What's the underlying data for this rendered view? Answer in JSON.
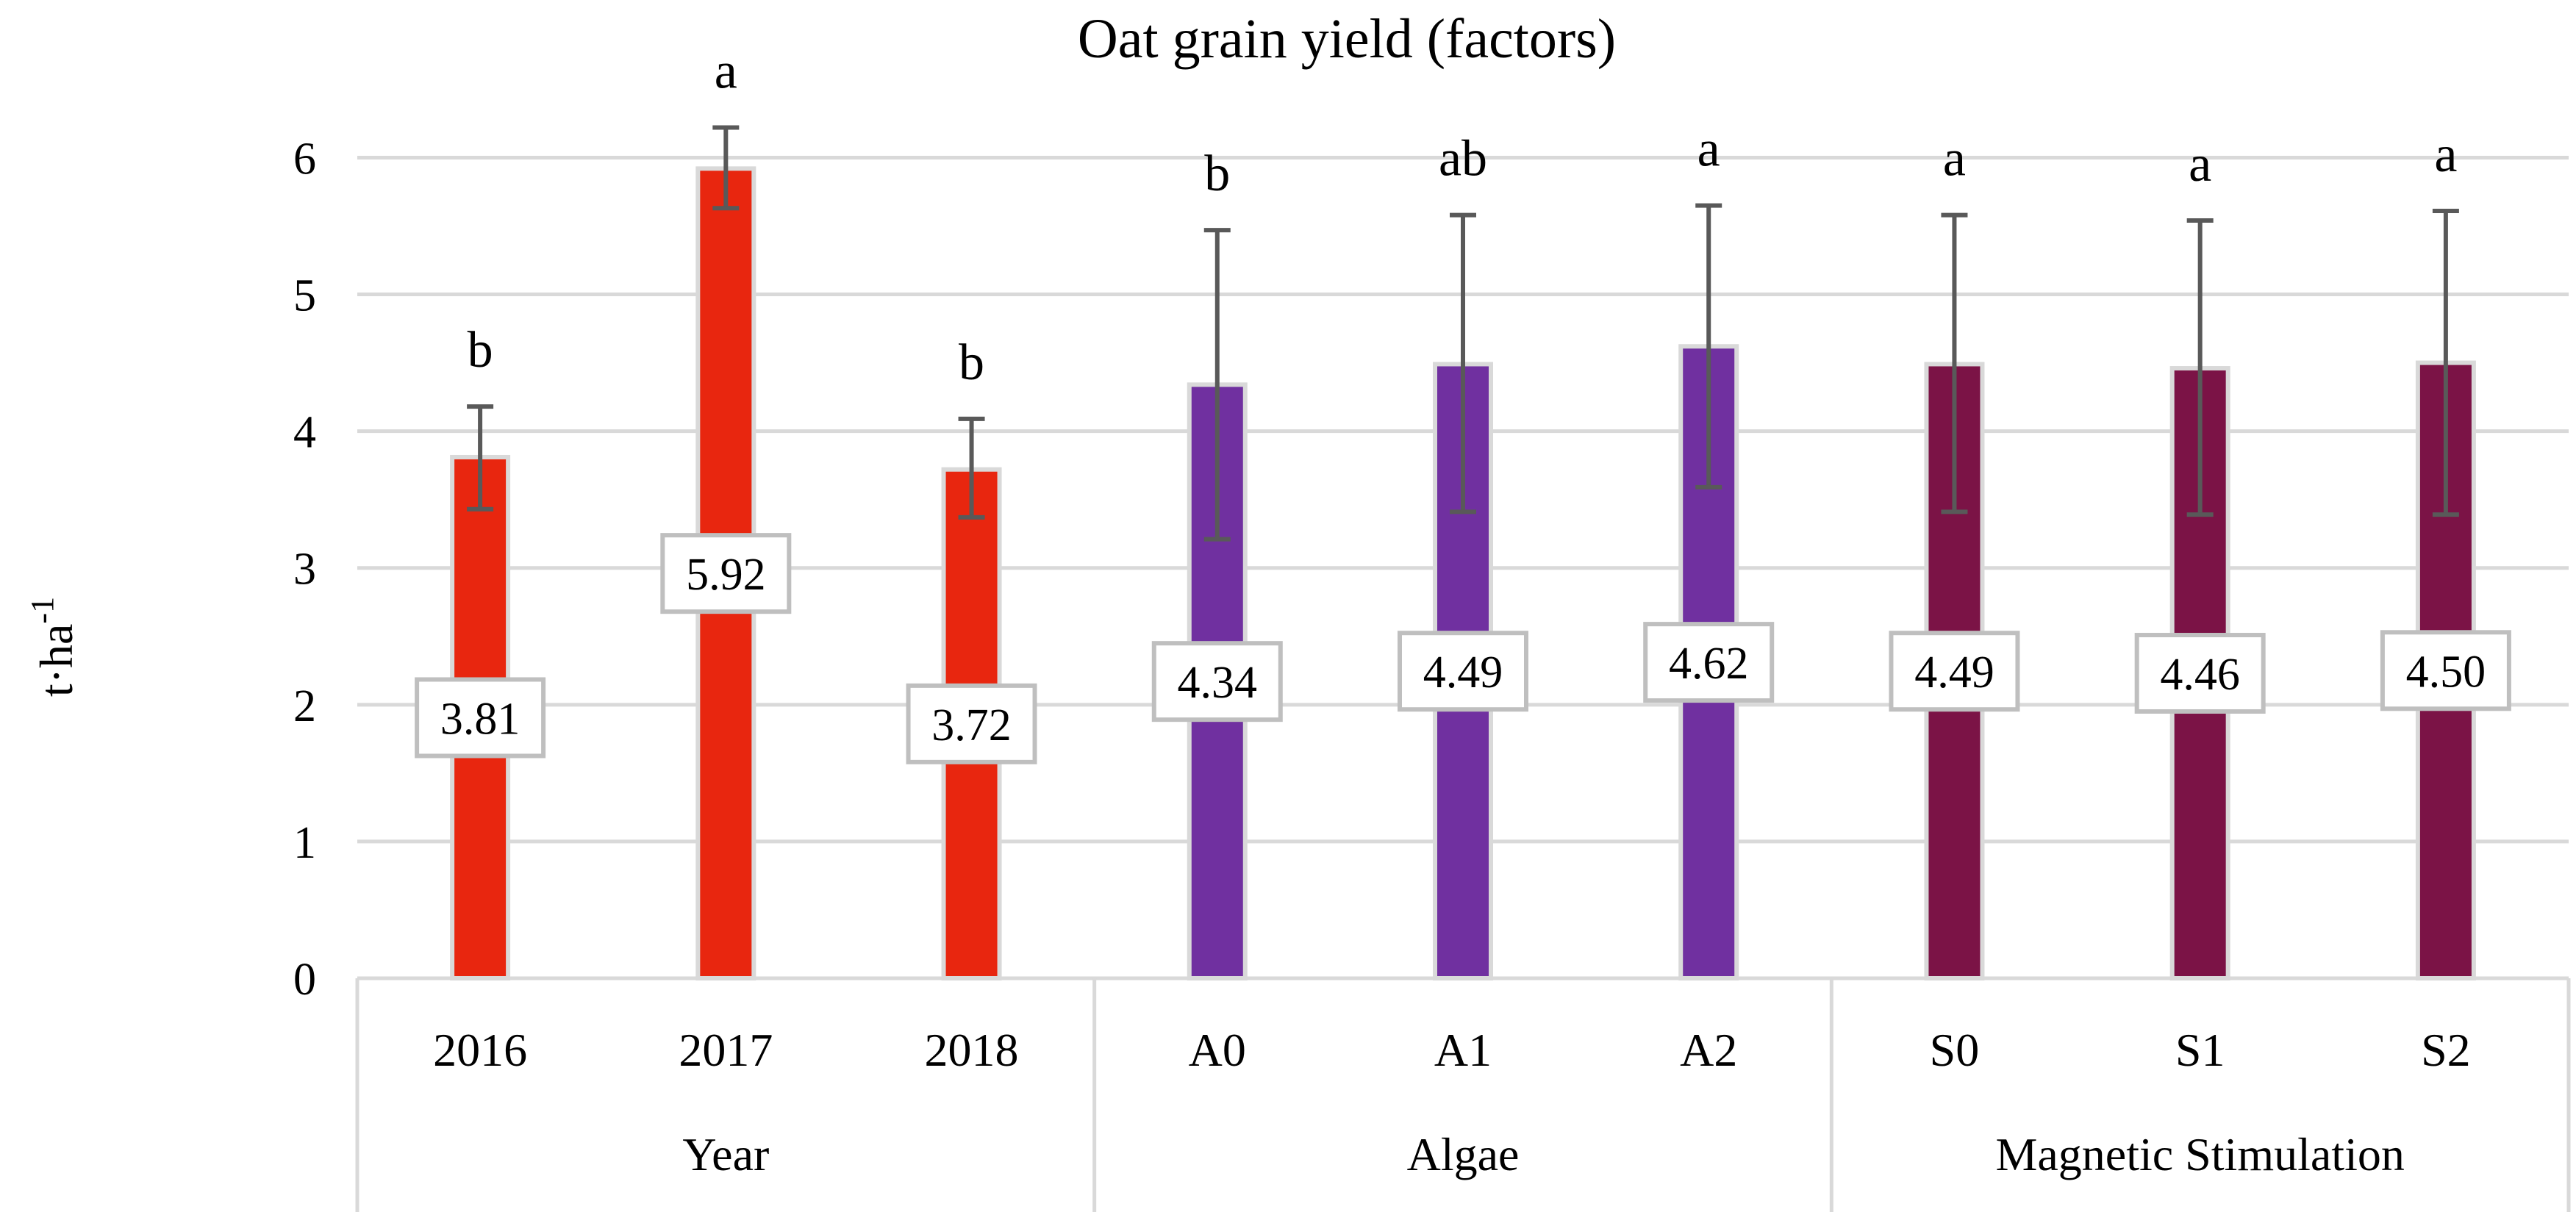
{
  "colors": {
    "year": "#e8260f",
    "algae": "#7030a0",
    "magnetic": "#7b1346",
    "gridline": "#d9d9d9",
    "errorbar": "#595959",
    "label_box_border": "#bfbfbf"
  },
  "chart_data": {
    "type": "bar",
    "title": "Oat grain yield (factors)",
    "ylabel_base": "t·ha",
    "ylabel_sup": "-1",
    "xlabel": "",
    "ylim": [
      0,
      6.4
    ],
    "yticks": [
      0,
      1,
      2,
      3,
      4,
      5,
      6
    ],
    "grid": true,
    "groups": [
      {
        "name": "Year",
        "color_key": "year",
        "bars": [
          {
            "category": "2016",
            "value": 3.81,
            "label": "3.81",
            "err_low": 3.43,
            "err_high": 4.18,
            "letter": "b"
          },
          {
            "category": "2017",
            "value": 5.92,
            "label": "5.92",
            "err_low": 5.63,
            "err_high": 6.22,
            "letter": "a"
          },
          {
            "category": "2018",
            "value": 3.72,
            "label": "3.72",
            "err_low": 3.37,
            "err_high": 4.09,
            "letter": "b"
          }
        ]
      },
      {
        "name": "Algae",
        "color_key": "algae",
        "bars": [
          {
            "category": "A0",
            "value": 4.34,
            "label": "4.34",
            "err_low": 3.21,
            "err_high": 5.47,
            "letter": "b"
          },
          {
            "category": "A1",
            "value": 4.49,
            "label": "4.49",
            "err_low": 3.41,
            "err_high": 5.58,
            "letter": "ab"
          },
          {
            "category": "A2",
            "value": 4.62,
            "label": "4.62",
            "err_low": 3.59,
            "err_high": 5.65,
            "letter": "a"
          }
        ]
      },
      {
        "name": "Magnetic Stimulation",
        "color_key": "magnetic",
        "bars": [
          {
            "category": "S0",
            "value": 4.49,
            "label": "4.49",
            "err_low": 3.41,
            "err_high": 5.58,
            "letter": "a"
          },
          {
            "category": "S1",
            "value": 4.46,
            "label": "4.46",
            "err_low": 3.39,
            "err_high": 5.54,
            "letter": "a"
          },
          {
            "category": "S2",
            "value": 4.5,
            "label": "4.50",
            "err_low": 3.39,
            "err_high": 5.61,
            "letter": "a"
          }
        ]
      }
    ]
  }
}
